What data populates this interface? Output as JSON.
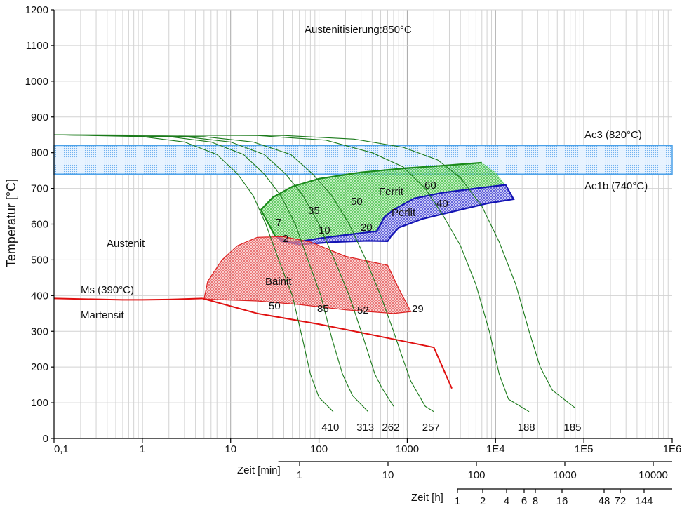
{
  "chart_data": {
    "type": "line",
    "title": "Austenitisierung:850°C",
    "ylabel": "Temperatur [°C]",
    "xlabel_min": "Zeit [min]",
    "xlabel_h": "Zeit [h]",
    "x_scale": "log",
    "xlim": [
      0.1,
      1000000
    ],
    "ylim": [
      0,
      1200
    ],
    "y_ticks": [
      "0",
      "100",
      "200",
      "300",
      "400",
      "500",
      "600",
      "700",
      "800",
      "900",
      "1000",
      "1100",
      "1200"
    ],
    "x_ticks": [
      "0,1",
      "1",
      "10",
      "100",
      "1000",
      "1E4",
      "1E5",
      "1E6"
    ],
    "min_ticks": [
      "1",
      "10",
      "100",
      "1000",
      "10000"
    ],
    "h_ticks": [
      "1",
      "2",
      "4",
      "6",
      "8",
      "16",
      "48",
      "72",
      "144"
    ],
    "grid": true,
    "colors": {
      "ferrit": "#1a8a1a",
      "perlit": "#1414b4",
      "bainit": "#dc2020",
      "ac": "#4aa0e8",
      "cooling": "#1a7a1a"
    },
    "bands": [
      {
        "name": "Ac3 (820°C)",
        "value": 820
      },
      {
        "name": "Ac1b (740°C)",
        "value": 740
      }
    ],
    "region_labels": [
      "Austenit",
      "Martensit",
      "Ms (390°C)",
      "Ferrit",
      "Perlit",
      "Bainit"
    ],
    "cooling_curves": [
      {
        "hardness": "410",
        "points": [
          [
            0.1,
            850
          ],
          [
            1,
            845
          ],
          [
            3,
            830
          ],
          [
            7,
            795
          ],
          [
            12,
            740
          ],
          [
            18,
            680
          ],
          [
            25,
            600
          ],
          [
            35,
            500
          ],
          [
            50,
            400
          ],
          [
            65,
            280
          ],
          [
            80,
            180
          ],
          [
            100,
            115
          ],
          [
            145,
            75
          ]
        ]
      },
      {
        "hardness": "313",
        "points": [
          [
            0.1,
            850
          ],
          [
            2,
            845
          ],
          [
            6,
            830
          ],
          [
            14,
            795
          ],
          [
            24,
            740
          ],
          [
            37,
            680
          ],
          [
            54,
            600
          ],
          [
            75,
            500
          ],
          [
            105,
            400
          ],
          [
            140,
            280
          ],
          [
            185,
            180
          ],
          [
            240,
            120
          ],
          [
            360,
            75
          ]
        ]
      },
      {
        "hardness": "262",
        "points": [
          [
            0.1,
            850
          ],
          [
            3,
            845
          ],
          [
            10,
            830
          ],
          [
            24,
            795
          ],
          [
            42,
            740
          ],
          [
            66,
            680
          ],
          [
            100,
            600
          ],
          [
            150,
            500
          ],
          [
            220,
            400
          ],
          [
            320,
            280
          ],
          [
            430,
            180
          ],
          [
            520,
            140
          ],
          [
            700,
            90
          ]
        ]
      },
      {
        "hardness": "257",
        "points": [
          [
            0.1,
            850
          ],
          [
            5,
            845
          ],
          [
            18,
            830
          ],
          [
            48,
            795
          ],
          [
            85,
            740
          ],
          [
            140,
            680
          ],
          [
            220,
            600
          ],
          [
            340,
            500
          ],
          [
            500,
            400
          ],
          [
            700,
            300
          ],
          [
            900,
            220
          ],
          [
            1100,
            160
          ],
          [
            1600,
            90
          ],
          [
            2000,
            75
          ]
        ]
      },
      {
        "hardness": "188",
        "points": [
          [
            0.1,
            850
          ],
          [
            20,
            848
          ],
          [
            120,
            835
          ],
          [
            400,
            800
          ],
          [
            900,
            760
          ],
          [
            1600,
            700
          ],
          [
            2600,
            620
          ],
          [
            4000,
            540
          ],
          [
            6000,
            430
          ],
          [
            8500,
            300
          ],
          [
            11000,
            180
          ],
          [
            14000,
            110
          ],
          [
            24000,
            75
          ]
        ]
      },
      {
        "hardness": "185",
        "points": [
          [
            0.1,
            850
          ],
          [
            40,
            848
          ],
          [
            250,
            838
          ],
          [
            900,
            815
          ],
          [
            2200,
            780
          ],
          [
            4000,
            730
          ],
          [
            7000,
            650
          ],
          [
            11000,
            550
          ],
          [
            17000,
            430
          ],
          [
            24000,
            300
          ],
          [
            32000,
            200
          ],
          [
            44000,
            135
          ],
          [
            80000,
            85
          ]
        ]
      }
    ],
    "phase_numbers": {
      "ferrit": [
        "7",
        "35",
        "50",
        "60"
      ],
      "perlit": [
        "2",
        "10",
        "20",
        "40"
      ],
      "bainit": [
        "50",
        "85",
        "52",
        "29"
      ]
    }
  }
}
